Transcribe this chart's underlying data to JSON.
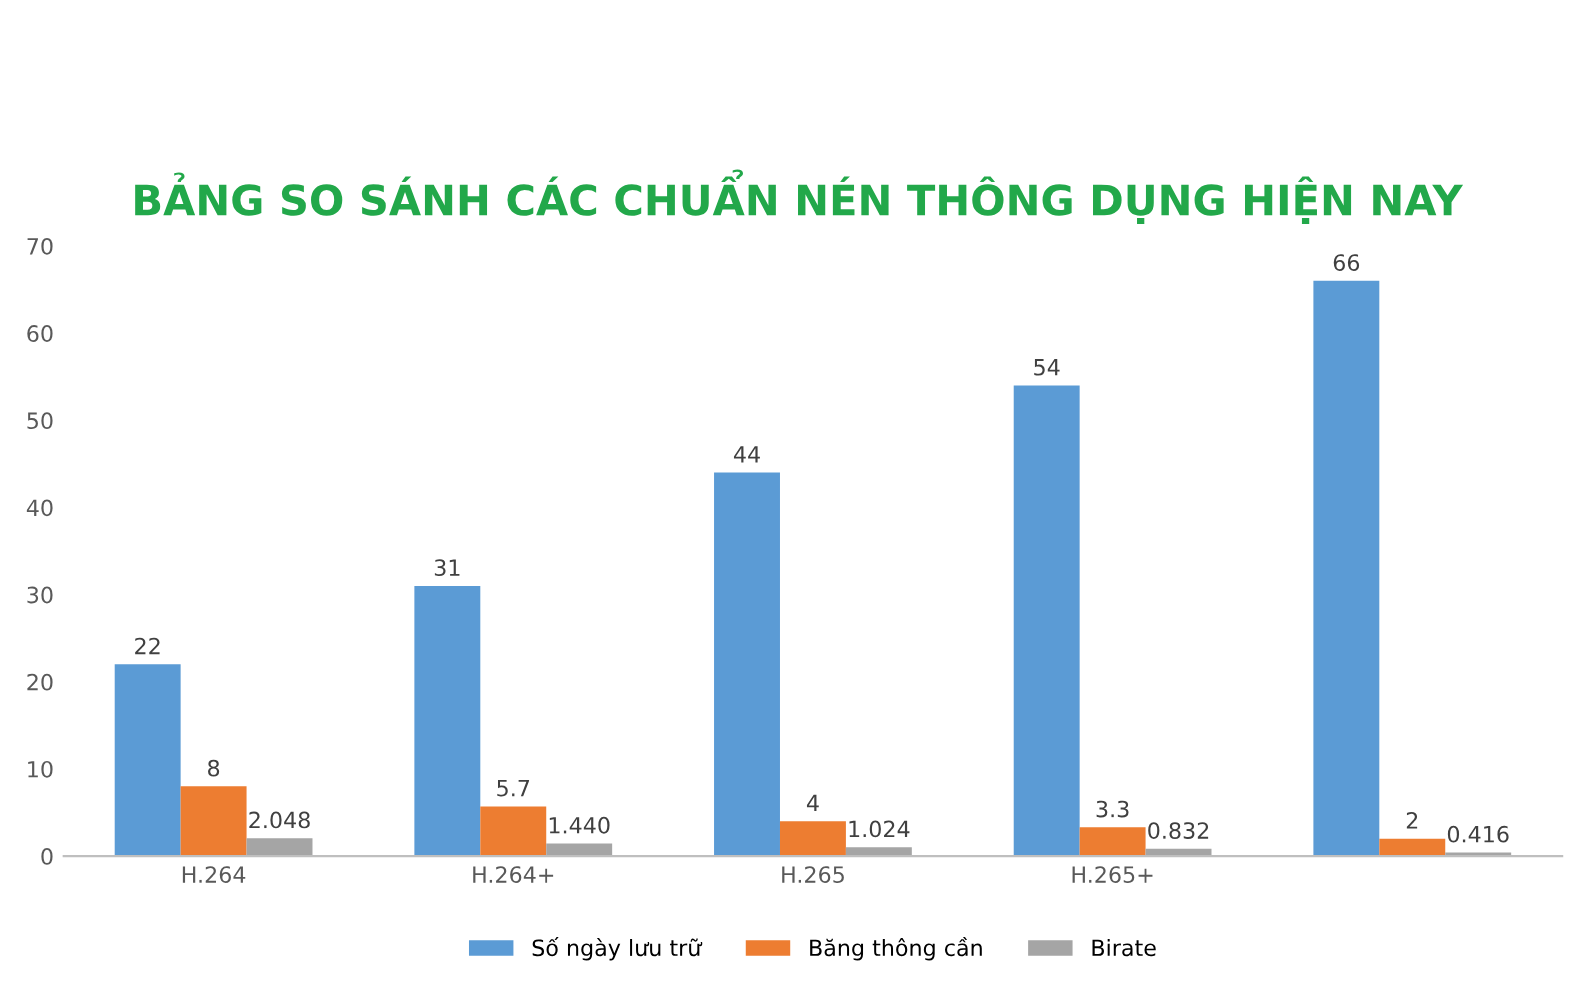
{
  "chart_data": {
    "type": "bar",
    "title": "BẢNG SO SÁNH CÁC CHUẨN NÉN THÔNG DỤNG HIỆN NAY",
    "categories": [
      "H.264",
      "H.264+",
      "H.265",
      "H.265+",
      null
    ],
    "series": [
      {
        "name": "Số ngày lưu trữ",
        "color": "#5b9bd5",
        "values": [
          22,
          31,
          44,
          54,
          66
        ],
        "value_labels": [
          "22",
          "31",
          "44",
          "54",
          "66"
        ]
      },
      {
        "name": "Băng thông cần",
        "color": "#ed7d31",
        "values": [
          8,
          5.7,
          4,
          3.3,
          2
        ],
        "value_labels": [
          "8",
          "5.7",
          "4",
          "3.3",
          "2"
        ]
      },
      {
        "name": "Birate",
        "color": "#a5a5a5",
        "values": [
          2.048,
          1.44,
          1.024,
          0.832,
          0.416
        ],
        "value_labels": [
          "2.048",
          "1.440",
          "1.024",
          "0.832",
          "0.416"
        ]
      }
    ],
    "ylim": [
      0,
      70
    ],
    "yticks": [
      0,
      10,
      20,
      30,
      40,
      50,
      60,
      70
    ],
    "grid": false,
    "legend": "bottom"
  }
}
